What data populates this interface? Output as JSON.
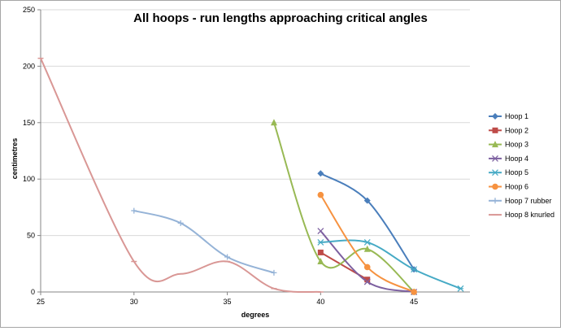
{
  "chart_data": {
    "type": "line",
    "title": "All hoops - run lengths approaching critical angles",
    "xlabel": "degrees",
    "ylabel": "centimetres",
    "xlim": [
      25,
      48
    ],
    "ylim": [
      0,
      250
    ],
    "x_ticks": [
      25,
      30,
      35,
      40,
      45
    ],
    "y_ticks": [
      0,
      50,
      100,
      150,
      200,
      250
    ],
    "legend_position": "right",
    "smooth": true,
    "series": [
      {
        "name": "Hoop 1",
        "color": "#4a7ebb",
        "marker": "diamond",
        "points": [
          [
            40,
            105
          ],
          [
            42.5,
            81
          ],
          [
            45,
            20
          ]
        ]
      },
      {
        "name": "Hoop 2",
        "color": "#be4b48",
        "marker": "square",
        "points": [
          [
            40,
            35
          ],
          [
            42.5,
            11
          ]
        ]
      },
      {
        "name": "Hoop 3",
        "color": "#98b954",
        "marker": "triangle",
        "points": [
          [
            37.5,
            150
          ],
          [
            40,
            27
          ],
          [
            42.5,
            38
          ],
          [
            45,
            0
          ]
        ]
      },
      {
        "name": "Hoop 4",
        "color": "#7d60a0",
        "marker": "x",
        "points": [
          [
            40,
            54
          ],
          [
            42.5,
            9
          ],
          [
            45,
            0
          ]
        ]
      },
      {
        "name": "Hoop 5",
        "color": "#46aac5",
        "marker": "star",
        "points": [
          [
            40,
            44
          ],
          [
            42.5,
            44
          ],
          [
            45,
            20
          ],
          [
            47.5,
            3
          ]
        ]
      },
      {
        "name": "Hoop 6",
        "color": "#f69240",
        "marker": "circle",
        "points": [
          [
            40,
            86
          ],
          [
            42.5,
            22
          ],
          [
            45,
            0
          ]
        ]
      },
      {
        "name": "Hoop 7 rubber",
        "color": "#95b3d7",
        "marker": "plus",
        "points": [
          [
            30,
            72
          ],
          [
            32.5,
            61
          ],
          [
            35,
            31
          ],
          [
            37.5,
            17
          ]
        ]
      },
      {
        "name": "Hoop 8 knurled",
        "color": "#d99795",
        "marker": "dash",
        "points": [
          [
            25,
            207
          ],
          [
            30,
            27
          ],
          [
            32.5,
            16
          ],
          [
            35,
            27
          ],
          [
            37.5,
            3
          ],
          [
            40,
            0
          ]
        ]
      }
    ]
  }
}
